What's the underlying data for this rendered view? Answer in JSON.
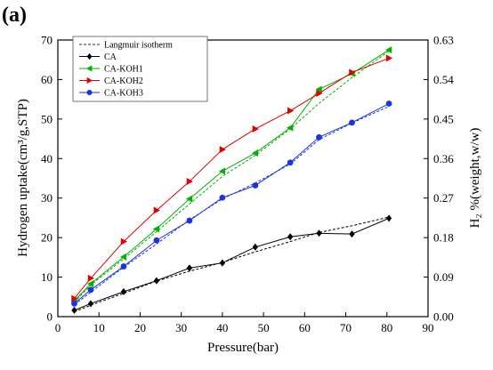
{
  "panel_label": "(a)",
  "chart_data": {
    "type": "line",
    "xlabel": "Pressure(bar)",
    "ylabel": "Hydrogen uptake(cm³/g,STP)",
    "y2label": "H₂ %(weight,w/w)",
    "xlim": [
      0,
      90
    ],
    "ylim": [
      0,
      70
    ],
    "y2lim": [
      0,
      0.63
    ],
    "x_ticks": [
      0,
      10,
      20,
      30,
      40,
      50,
      60,
      70,
      80,
      90
    ],
    "y_ticks": [
      0,
      10,
      20,
      30,
      40,
      50,
      60,
      70
    ],
    "y2_ticks": [
      "0.00",
      "0.09",
      "0.18",
      "0.27",
      "0.36",
      "0.45",
      "0.54",
      "0.63"
    ],
    "grid": false,
    "legend": {
      "position": "top-left",
      "fit_label": "Langmuir isotherm"
    },
    "series": [
      {
        "name": "CA",
        "color": "#000000",
        "marker": "diamond",
        "x": [
          4,
          8,
          16,
          24,
          32,
          40,
          48,
          56.5,
          63.5,
          71.5,
          80.5
        ],
        "y": [
          1.6,
          3.3,
          6.3,
          9.1,
          12.3,
          13.6,
          17.6,
          20.2,
          21.1,
          20.9,
          24.9
        ],
        "fit": [
          1.2,
          2.9,
          5.9,
          9.0,
          11.5,
          13.7,
          16.4,
          19.0,
          21.3,
          23.0,
          25.2
        ]
      },
      {
        "name": "CA-KOH1",
        "color": "#00b300",
        "marker": "triangle-left",
        "x": [
          4,
          8,
          16,
          24,
          32,
          40,
          48,
          56.5,
          63.5,
          71.5,
          80.5
        ],
        "y": [
          4.0,
          8.3,
          15.1,
          22.2,
          29.8,
          36.8,
          41.4,
          47.8,
          57.5,
          61.5,
          67.5
        ],
        "fit": [
          3.6,
          8.0,
          14.6,
          21.5,
          28.5,
          35.5,
          40.8,
          47.5,
          54.0,
          60.5,
          67.2
        ]
      },
      {
        "name": "CA-KOH2",
        "color": "#e00000",
        "marker": "triangle-right",
        "x": [
          4,
          8,
          16,
          24,
          32,
          40,
          48,
          56.5,
          63.5,
          71.5,
          80.5
        ],
        "y": [
          4.6,
          9.7,
          19.0,
          26.9,
          34.2,
          42.3,
          47.5,
          52.1,
          56.5,
          61.8,
          65.4
        ],
        "fit": null
      },
      {
        "name": "CA-KOH3",
        "color": "#1a33e6",
        "marker": "circle",
        "x": [
          4,
          8,
          16,
          24,
          32,
          40,
          48,
          56.5,
          63.5,
          71.5,
          80.5
        ],
        "y": [
          3.3,
          6.8,
          12.7,
          19.3,
          24.3,
          30.1,
          33.2,
          39.0,
          45.4,
          49.1,
          53.9
        ],
        "fit": [
          3.0,
          6.2,
          12.5,
          18.4,
          24.5,
          29.8,
          33.8,
          38.6,
          44.8,
          49.0,
          53.2
        ]
      }
    ]
  }
}
